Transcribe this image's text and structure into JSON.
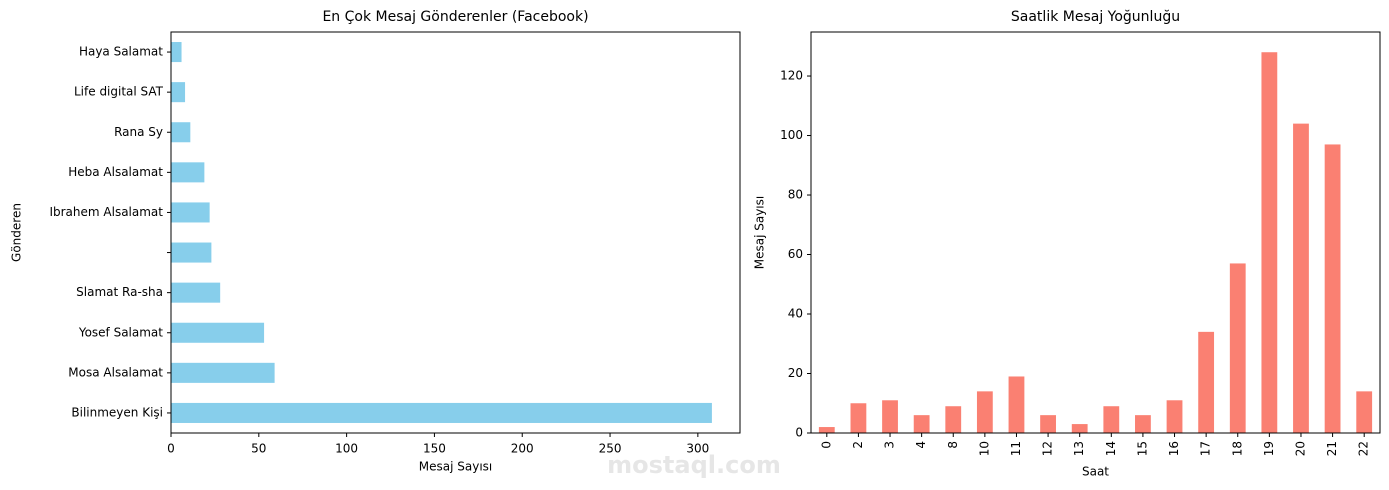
{
  "chart_data": [
    {
      "type": "bar",
      "orientation": "horizontal",
      "title": "En Çok Mesaj Gönderenler (Facebook)",
      "xlabel": "Mesaj Sayısı",
      "ylabel": "Gönderen",
      "categories": [
        "Bilinmeyen Kişi",
        "Mosa Alsalamat",
        "Yosef Salamat",
        "Slamat Ra-sha",
        null,
        "Ibrahem Alsalamat",
        "Heba Alsalamat",
        "Rana Sy",
        "Life digital SAT",
        "Haya Salamat"
      ],
      "values": [
        308,
        59,
        53,
        28,
        23,
        22,
        19,
        11,
        8,
        6
      ],
      "color": "#87ceeb",
      "xlim": [
        0,
        324
      ],
      "xticks": [
        0,
        50,
        100,
        150,
        200,
        250,
        300
      ]
    },
    {
      "type": "bar",
      "orientation": "vertical",
      "title": "Saatlik Mesaj Yoğunluğu",
      "xlabel": "Saat",
      "ylabel": "Mesaj Sayısı",
      "categories": [
        "0",
        "2",
        "3",
        "4",
        "8",
        "10",
        "11",
        "12",
        "13",
        "14",
        "15",
        "16",
        "17",
        "18",
        "19",
        "20",
        "21",
        "22"
      ],
      "values": [
        2,
        10,
        11,
        6,
        9,
        14,
        19,
        6,
        3,
        9,
        6,
        11,
        34,
        57,
        128,
        104,
        97,
        14
      ],
      "color": "#fa8072",
      "ylim": [
        0,
        134.8
      ],
      "yticks": [
        0,
        20,
        40,
        60,
        80,
        100,
        120
      ]
    }
  ],
  "watermark": "mostaql.com"
}
